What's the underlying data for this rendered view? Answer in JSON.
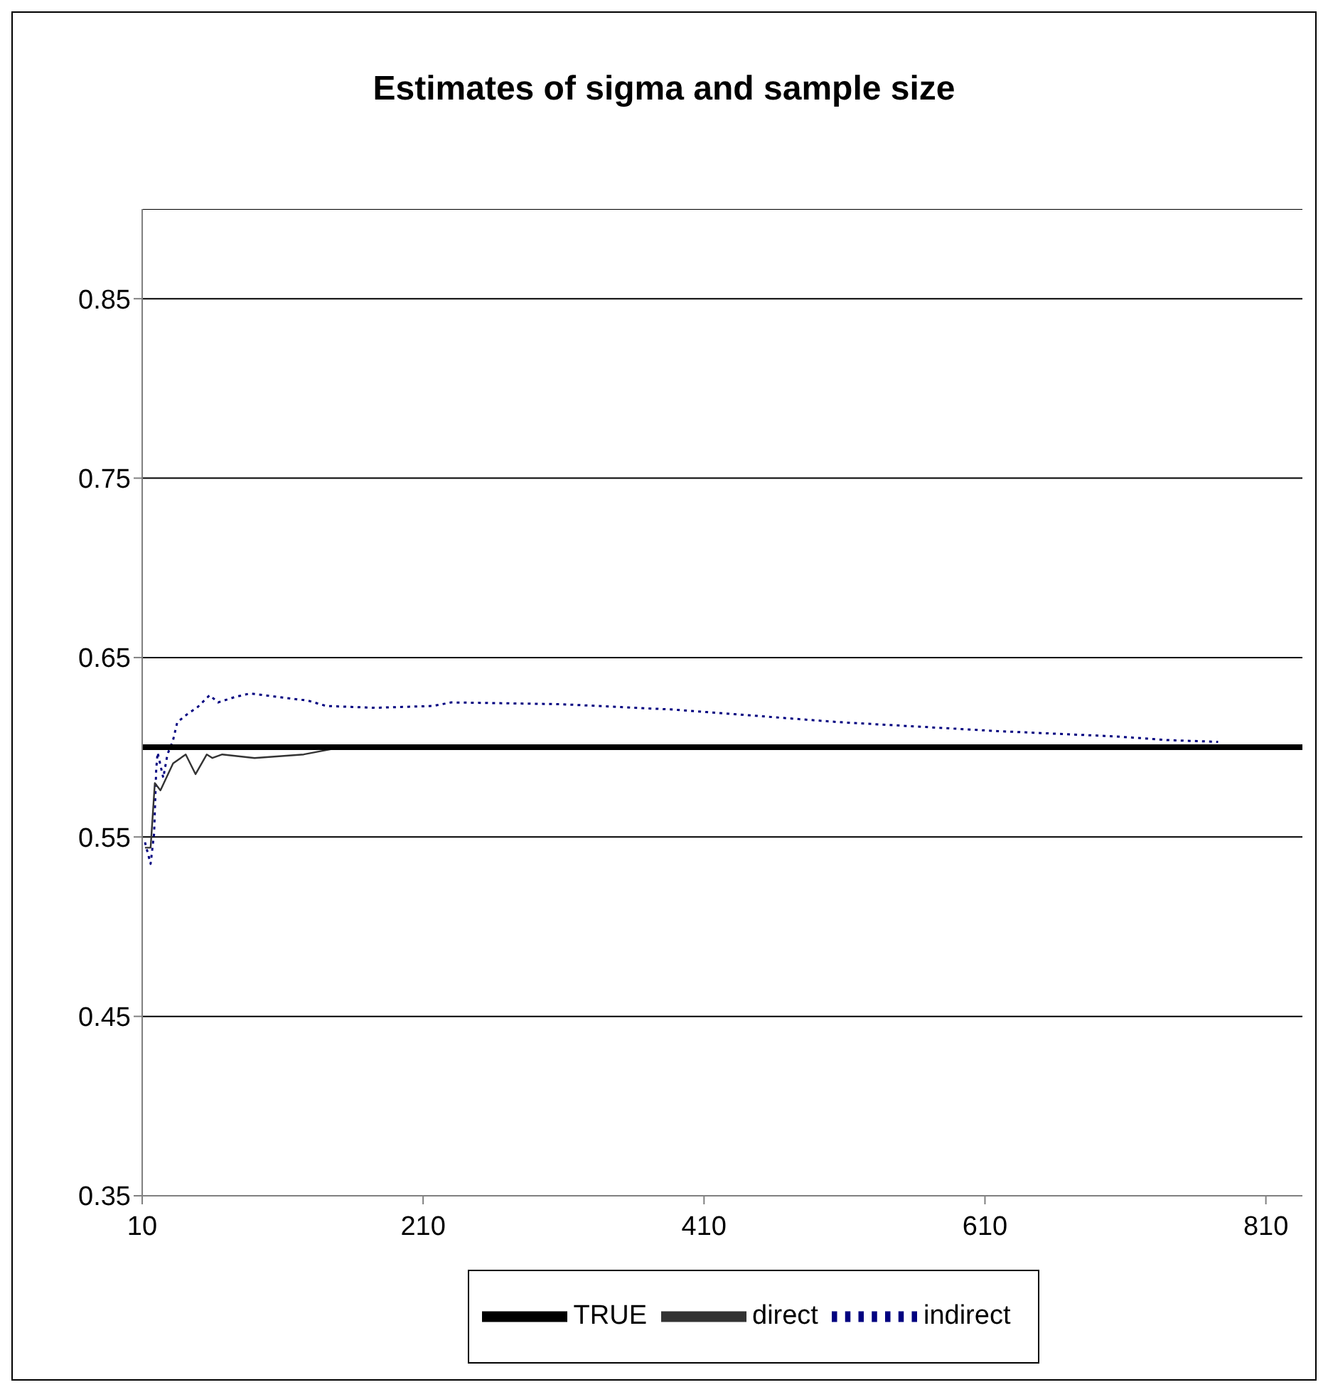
{
  "chart_data": {
    "type": "line",
    "title": "Estimates of sigma and sample size",
    "xlim": [
      10,
      836
    ],
    "xticks": [
      10,
      210,
      410,
      610,
      810
    ],
    "ylim": [
      0.35,
      0.9
    ],
    "yticks": [
      0.35,
      0.45,
      0.55,
      0.65,
      0.75,
      0.85
    ],
    "grid": "y",
    "legend": "bottom",
    "marker": "none",
    "series": [
      {
        "name": "indirect",
        "color": "#000080",
        "line_style": "dotted",
        "x": [
          12,
          16,
          18.5,
          20,
          21,
          25,
          28,
          32,
          35,
          43,
          49,
          58,
          64,
          76,
          87,
          107,
          128,
          141,
          176,
          217,
          230,
          308,
          388,
          506,
          619,
          704,
          740,
          776
        ],
        "values": [
          0.547,
          0.535,
          0.552,
          0.588,
          0.597,
          0.583,
          0.596,
          0.604,
          0.614,
          0.619,
          0.622,
          0.629,
          0.625,
          0.628,
          0.63,
          0.628,
          0.626,
          0.623,
          0.622,
          0.623,
          0.625,
          0.624,
          0.621,
          0.614,
          0.609,
          0.606,
          0.604,
          0.603
        ]
      },
      {
        "name": "direct",
        "color": "#333333",
        "line_style": "solid",
        "x": [
          12,
          16,
          19,
          23,
          32,
          41,
          48,
          56,
          60,
          67,
          90,
          125,
          145,
          160
        ],
        "values": [
          0.544,
          0.544,
          0.58,
          0.576,
          0.591,
          0.596,
          0.585,
          0.596,
          0.594,
          0.596,
          0.594,
          0.596,
          0.599,
          0.6
        ]
      },
      {
        "name": "TRUE",
        "color": "#000000",
        "line_style": "solid",
        "x": [
          10,
          836
        ],
        "values": [
          0.6,
          0.6
        ]
      }
    ]
  }
}
